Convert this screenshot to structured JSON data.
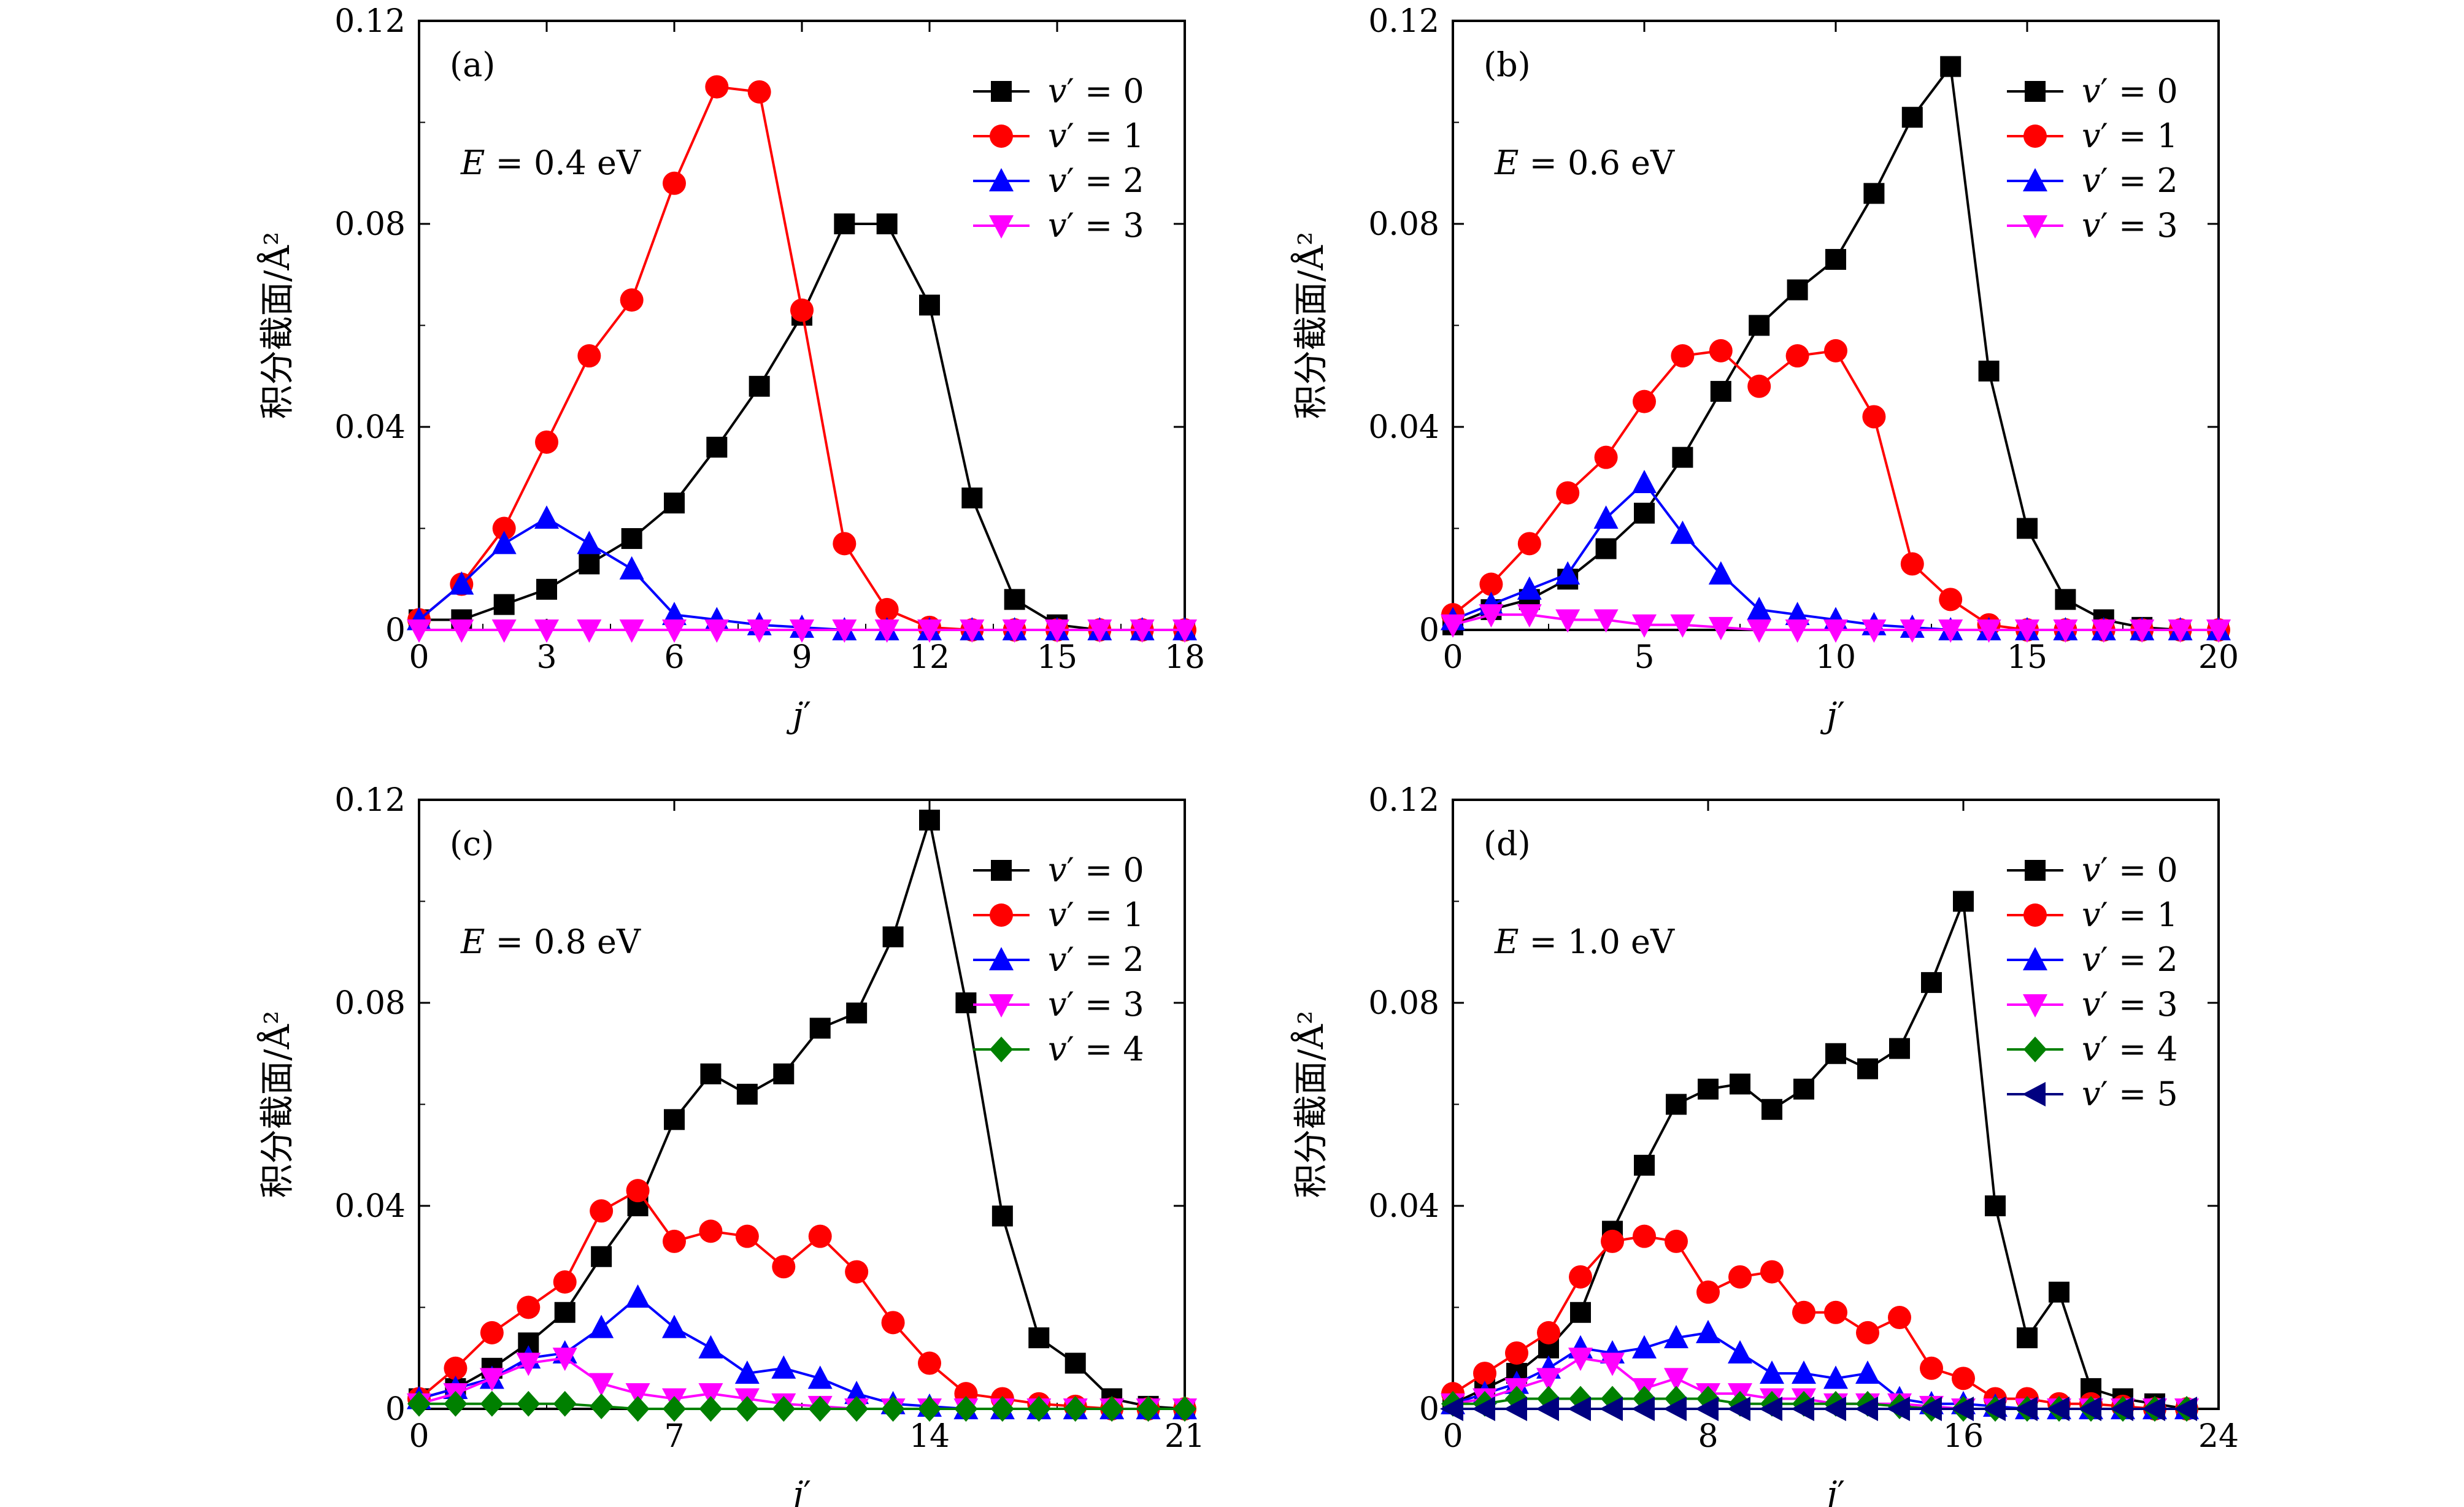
{
  "figure": {
    "panels": [
      {
        "id": "a",
        "panel_label": "(a)",
        "energy_label": "E = 0.4 eV"
      },
      {
        "id": "b",
        "panel_label": "(b)",
        "energy_label": "E = 0.6 eV"
      },
      {
        "id": "c",
        "panel_label": "(c)",
        "energy_label": "E = 0.8 eV"
      },
      {
        "id": "d",
        "panel_label": "(d)",
        "energy_label": "E = 1.0 eV"
      }
    ]
  },
  "series_styles": [
    {
      "name": "v′ = 0",
      "color": "#000000",
      "marker": "square"
    },
    {
      "name": "v′ = 1",
      "color": "#ff0000",
      "marker": "circle"
    },
    {
      "name": "v′ = 2",
      "color": "#0000ff",
      "marker": "triangle-up"
    },
    {
      "name": "v′ = 3",
      "color": "#ff00ff",
      "marker": "triangle-down"
    },
    {
      "name": "v′ = 4",
      "color": "#008000",
      "marker": "diamond"
    },
    {
      "name": "v′ = 5",
      "color": "#000080",
      "marker": "triangle-left"
    }
  ],
  "chart_data": [
    {
      "type": "line",
      "panel": "(a)",
      "annotation": "E = 0.4 eV",
      "xlabel": "j′",
      "ylabel": "积分截面/Å²",
      "xlim": [
        0,
        18
      ],
      "ylim": [
        0,
        0.12
      ],
      "xticks": [
        0,
        3,
        6,
        9,
        12,
        15,
        18
      ],
      "yticks": [
        "0",
        "0.04",
        "0.08",
        "0.12"
      ],
      "legend_position": "top-right",
      "grid": false,
      "series": [
        {
          "name": "v′ = 0",
          "x": [
            0,
            1,
            2,
            3,
            4,
            5,
            6,
            7,
            8,
            9,
            10,
            11,
            12,
            13,
            14,
            15,
            16,
            17,
            18
          ],
          "values": [
            0.002,
            0.002,
            0.005,
            0.008,
            0.013,
            0.018,
            0.025,
            0.036,
            0.048,
            0.062,
            0.08,
            0.08,
            0.064,
            0.026,
            0.006,
            0.001,
            0,
            0,
            0
          ]
        },
        {
          "name": "v′ = 1",
          "x": [
            0,
            1,
            2,
            3,
            4,
            5,
            6,
            7,
            8,
            9,
            10,
            11,
            12,
            13,
            14,
            15,
            16,
            17,
            18
          ],
          "values": [
            0.002,
            0.009,
            0.02,
            0.037,
            0.054,
            0.065,
            0.088,
            0.107,
            0.106,
            0.063,
            0.017,
            0.004,
            0.0005,
            0,
            0,
            0,
            0,
            0,
            0
          ]
        },
        {
          "name": "v′ = 2",
          "x": [
            0,
            1,
            2,
            3,
            4,
            5,
            6,
            7,
            8,
            9,
            10,
            11,
            12,
            13,
            14,
            15,
            16,
            17,
            18
          ],
          "values": [
            0.002,
            0.009,
            0.017,
            0.022,
            0.017,
            0.012,
            0.003,
            0.002,
            0.001,
            0.0005,
            0,
            0,
            0,
            0,
            0,
            0,
            0,
            0,
            0
          ]
        },
        {
          "name": "v′ = 3",
          "x": [
            0,
            1,
            2,
            3,
            4,
            5,
            6,
            7,
            8,
            9,
            10,
            11,
            12,
            13,
            14,
            15,
            16,
            17,
            18
          ],
          "values": [
            0,
            0,
            0,
            0,
            0,
            0,
            0,
            0,
            0,
            0,
            0,
            0,
            0,
            0,
            0,
            0,
            0,
            0,
            0
          ]
        }
      ]
    },
    {
      "type": "line",
      "panel": "(b)",
      "annotation": "E = 0.6 eV",
      "xlabel": "j′",
      "ylabel": "积分截面/Å²",
      "xlim": [
        0,
        20
      ],
      "ylim": [
        0,
        0.12
      ],
      "xticks": [
        0,
        5,
        10,
        15,
        20
      ],
      "yticks": [
        "0",
        "0.04",
        "0.08",
        "0.12"
      ],
      "legend_position": "top-right",
      "grid": false,
      "series": [
        {
          "name": "v′ = 0",
          "x": [
            0,
            1,
            2,
            3,
            4,
            5,
            6,
            7,
            8,
            9,
            10,
            11,
            12,
            13,
            14,
            15,
            16,
            17,
            18,
            19,
            20
          ],
          "values": [
            0.001,
            0.004,
            0.006,
            0.01,
            0.016,
            0.023,
            0.034,
            0.047,
            0.06,
            0.067,
            0.073,
            0.086,
            0.101,
            0.111,
            0.051,
            0.02,
            0.006,
            0.002,
            0.0005,
            0,
            0
          ]
        },
        {
          "name": "v′ = 1",
          "x": [
            0,
            1,
            2,
            3,
            4,
            5,
            6,
            7,
            8,
            9,
            10,
            11,
            12,
            13,
            14,
            15,
            16,
            17,
            18,
            19,
            20
          ],
          "values": [
            0.003,
            0.009,
            0.017,
            0.027,
            0.034,
            0.045,
            0.054,
            0.055,
            0.048,
            0.054,
            0.055,
            0.042,
            0.013,
            0.006,
            0.001,
            0,
            0,
            0,
            0,
            0,
            0
          ]
        },
        {
          "name": "v′ = 2",
          "x": [
            0,
            1,
            2,
            3,
            4,
            5,
            6,
            7,
            8,
            9,
            10,
            11,
            12,
            13,
            14,
            15,
            16,
            17,
            18,
            19,
            20
          ],
          "values": [
            0.002,
            0.005,
            0.008,
            0.011,
            0.022,
            0.029,
            0.019,
            0.011,
            0.004,
            0.003,
            0.002,
            0.001,
            0.0005,
            0,
            0,
            0,
            0,
            0,
            0,
            0,
            0
          ]
        },
        {
          "name": "v′ = 3",
          "x": [
            0,
            1,
            2,
            3,
            4,
            5,
            6,
            7,
            8,
            9,
            10,
            11,
            12,
            13,
            14,
            15,
            16,
            17,
            18,
            19,
            20
          ],
          "values": [
            0.001,
            0.003,
            0.003,
            0.002,
            0.002,
            0.001,
            0.001,
            0.0005,
            0,
            0,
            0,
            0,
            0,
            0,
            0,
            0,
            0,
            0,
            0,
            0,
            0
          ]
        }
      ]
    },
    {
      "type": "line",
      "panel": "(c)",
      "annotation": "E = 0.8 eV",
      "xlabel": "j′",
      "ylabel": "积分截面/Å²",
      "xlim": [
        0,
        21
      ],
      "ylim": [
        0,
        0.12
      ],
      "xticks": [
        0,
        7,
        14,
        21
      ],
      "yticks": [
        "0",
        "0.04",
        "0.08",
        "0.12"
      ],
      "legend_position": "top-right",
      "grid": false,
      "series": [
        {
          "name": "v′ = 0",
          "x": [
            0,
            1,
            2,
            3,
            4,
            5,
            6,
            7,
            8,
            9,
            10,
            11,
            12,
            13,
            14,
            15,
            16,
            17,
            18,
            19,
            20,
            21
          ],
          "values": [
            0.002,
            0.004,
            0.008,
            0.013,
            0.019,
            0.03,
            0.04,
            0.057,
            0.066,
            0.062,
            0.066,
            0.075,
            0.078,
            0.093,
            0.116,
            0.08,
            0.038,
            0.014,
            0.009,
            0.002,
            0.0005,
            0
          ]
        },
        {
          "name": "v′ = 1",
          "x": [
            0,
            1,
            2,
            3,
            4,
            5,
            6,
            7,
            8,
            9,
            10,
            11,
            12,
            13,
            14,
            15,
            16,
            17,
            18,
            19,
            20,
            21
          ],
          "values": [
            0.002,
            0.008,
            0.015,
            0.02,
            0.025,
            0.039,
            0.043,
            0.033,
            0.035,
            0.034,
            0.028,
            0.034,
            0.027,
            0.017,
            0.009,
            0.003,
            0.002,
            0.001,
            0.0005,
            0,
            0,
            0
          ]
        },
        {
          "name": "v′ = 2",
          "x": [
            0,
            1,
            2,
            3,
            4,
            5,
            6,
            7,
            8,
            9,
            10,
            11,
            12,
            13,
            14,
            15,
            16,
            17,
            18,
            19,
            20,
            21
          ],
          "values": [
            0.002,
            0.004,
            0.006,
            0.01,
            0.011,
            0.016,
            0.022,
            0.016,
            0.012,
            0.007,
            0.008,
            0.006,
            0.003,
            0.001,
            0.0005,
            0,
            0,
            0,
            0,
            0,
            0,
            0
          ]
        },
        {
          "name": "v′ = 3",
          "x": [
            0,
            1,
            2,
            3,
            4,
            5,
            6,
            7,
            8,
            9,
            10,
            11,
            12,
            13,
            14,
            15,
            16,
            17,
            18,
            19,
            20,
            21
          ],
          "values": [
            0.001,
            0.003,
            0.006,
            0.009,
            0.01,
            0.005,
            0.003,
            0.002,
            0.003,
            0.002,
            0.001,
            0.0005,
            0,
            0,
            0,
            0,
            0,
            0,
            0,
            0,
            0,
            0
          ]
        },
        {
          "name": "v′ = 4",
          "x": [
            0,
            1,
            2,
            3,
            4,
            5,
            6,
            7,
            8,
            9,
            10,
            11,
            12,
            13,
            14,
            15,
            16,
            17,
            18,
            19,
            20,
            21
          ],
          "values": [
            0.001,
            0.001,
            0.001,
            0.001,
            0.001,
            0.0005,
            0,
            0,
            0,
            0,
            0,
            0,
            0,
            0,
            0,
            0,
            0,
            0,
            0,
            0,
            0,
            0
          ]
        }
      ]
    },
    {
      "type": "line",
      "panel": "(d)",
      "annotation": "E = 1.0 eV",
      "xlabel": "j′",
      "ylabel": "积分截面/Å²",
      "xlim": [
        0,
        24
      ],
      "ylim": [
        0,
        0.12
      ],
      "xticks": [
        0,
        8,
        16,
        24
      ],
      "yticks": [
        "0",
        "0.04",
        "0.08",
        "0.12"
      ],
      "legend_position": "top-right",
      "grid": false,
      "series": [
        {
          "name": "v′ = 0",
          "x": [
            0,
            1,
            2,
            3,
            4,
            5,
            6,
            7,
            8,
            9,
            10,
            11,
            12,
            13,
            14,
            15,
            16,
            17,
            18,
            19,
            20,
            21,
            22,
            23
          ],
          "values": [
            0.001,
            0.004,
            0.007,
            0.012,
            0.019,
            0.035,
            0.048,
            0.06,
            0.063,
            0.064,
            0.059,
            0.063,
            0.07,
            0.067,
            0.071,
            0.084,
            0.1,
            0.04,
            0.014,
            0.023,
            0.004,
            0.002,
            0.001,
            0
          ]
        },
        {
          "name": "v′ = 1",
          "x": [
            0,
            1,
            2,
            3,
            4,
            5,
            6,
            7,
            8,
            9,
            10,
            11,
            12,
            13,
            14,
            15,
            16,
            17,
            18,
            19,
            20,
            21,
            22,
            23
          ],
          "values": [
            0.003,
            0.007,
            0.011,
            0.015,
            0.026,
            0.033,
            0.034,
            0.033,
            0.023,
            0.026,
            0.027,
            0.019,
            0.019,
            0.015,
            0.018,
            0.008,
            0.006,
            0.002,
            0.002,
            0.001,
            0.001,
            0.0005,
            0,
            0
          ]
        },
        {
          "name": "v′ = 2",
          "x": [
            0,
            1,
            2,
            3,
            4,
            5,
            6,
            7,
            8,
            9,
            10,
            11,
            12,
            13,
            14,
            15,
            16,
            17,
            18,
            19,
            20,
            21,
            22,
            23
          ],
          "values": [
            0.001,
            0.003,
            0.005,
            0.008,
            0.012,
            0.011,
            0.012,
            0.014,
            0.015,
            0.011,
            0.007,
            0.007,
            0.006,
            0.007,
            0.002,
            0.001,
            0.001,
            0.0005,
            0,
            0,
            0,
            0,
            0,
            0
          ]
        },
        {
          "name": "v′ = 3",
          "x": [
            0,
            1,
            2,
            3,
            4,
            5,
            6,
            7,
            8,
            9,
            10,
            11,
            12,
            13,
            14,
            15,
            16,
            17,
            18,
            19,
            20,
            21,
            22,
            23
          ],
          "values": [
            0.001,
            0.002,
            0.004,
            0.006,
            0.01,
            0.009,
            0.004,
            0.006,
            0.003,
            0.003,
            0.002,
            0.002,
            0.001,
            0.001,
            0.001,
            0.0005,
            0,
            0,
            0,
            0,
            0,
            0,
            0,
            0
          ]
        },
        {
          "name": "v′ = 4",
          "x": [
            0,
            1,
            2,
            3,
            4,
            5,
            6,
            7,
            8,
            9,
            10,
            11,
            12,
            13,
            14,
            15,
            16,
            17,
            18,
            19,
            20,
            21,
            22,
            23
          ],
          "values": [
            0.001,
            0.001,
            0.002,
            0.002,
            0.002,
            0.002,
            0.002,
            0.002,
            0.002,
            0.001,
            0.001,
            0.001,
            0.001,
            0.001,
            0.0005,
            0,
            0,
            0,
            0,
            0,
            0,
            0,
            0,
            0
          ]
        },
        {
          "name": "v′ = 5",
          "x": [
            0,
            1,
            2,
            3,
            4,
            5,
            6,
            7,
            8,
            9,
            10,
            11,
            12,
            13,
            14,
            15,
            16,
            17,
            18,
            19,
            20,
            21,
            22,
            23
          ],
          "values": [
            0,
            0,
            0,
            0,
            0,
            0,
            0,
            0,
            0,
            0,
            0,
            0,
            0,
            0,
            0,
            0,
            0,
            0,
            0,
            0,
            0,
            0,
            0,
            0
          ]
        }
      ]
    }
  ]
}
